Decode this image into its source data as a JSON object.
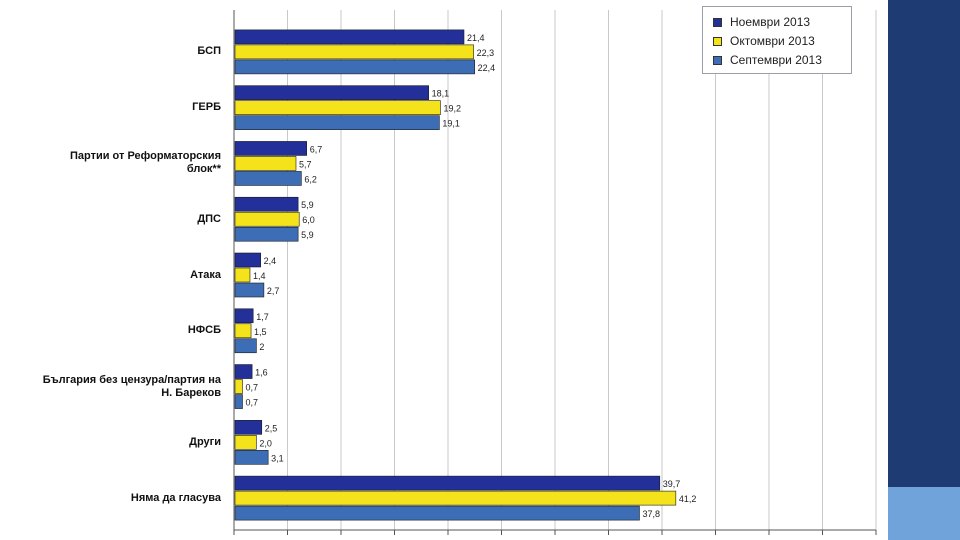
{
  "chart_data": {
    "type": "bar",
    "orientation": "horizontal",
    "categories": [
      "БСП",
      "ГЕРБ",
      "Партии от Реформаторския блок**",
      "ДПС",
      "Атака",
      "НФСБ",
      "България без цензура/партия на Н. Бареков",
      "Други",
      "Няма да гласува"
    ],
    "category_labels": [
      "БСП",
      "ГЕРБ",
      "Партии от Реформаторския\nблок**",
      "ДПС",
      "Атака",
      "НФСБ",
      "България без цензура/партия на\nН. Бареков",
      "Други",
      "Няма да гласува"
    ],
    "series": [
      {
        "name": "Ноември 2013",
        "values": [
          21.4,
          18.1,
          6.7,
          5.9,
          2.4,
          1.7,
          1.6,
          2.5,
          39.7
        ],
        "labels": [
          "21,4",
          "18,1",
          "6,7",
          "5,9",
          "2,4",
          "1,7",
          "1,6",
          "2,5",
          "39,7"
        ],
        "color": "#24309a"
      },
      {
        "name": "Октомври 2013",
        "values": [
          22.3,
          19.2,
          5.7,
          6.0,
          1.4,
          1.5,
          0.7,
          2.0,
          41.2
        ],
        "labels": [
          "22,3",
          "19,2",
          "5,7",
          "6,0",
          "1,4",
          "1,5",
          "0,7",
          "2,0",
          "41,2"
        ],
        "color": "#f4e21a"
      },
      {
        "name": "Септември 2013",
        "values": [
          22.4,
          19.1,
          6.2,
          5.9,
          2.7,
          2,
          0.7,
          3.1,
          37.8
        ],
        "labels": [
          "22,4",
          "19,1",
          "6,2",
          "5,9",
          "2,7",
          "2",
          "0,7",
          "3,1",
          "37,8"
        ],
        "color": "#3d6db5"
      }
    ],
    "xlim": [
      0,
      60
    ],
    "tick_step": 5,
    "grid": true,
    "legend_position": "top-right"
  },
  "colors": {
    "side_dark": "#1f3b73",
    "side_light": "#6fa3d9"
  }
}
